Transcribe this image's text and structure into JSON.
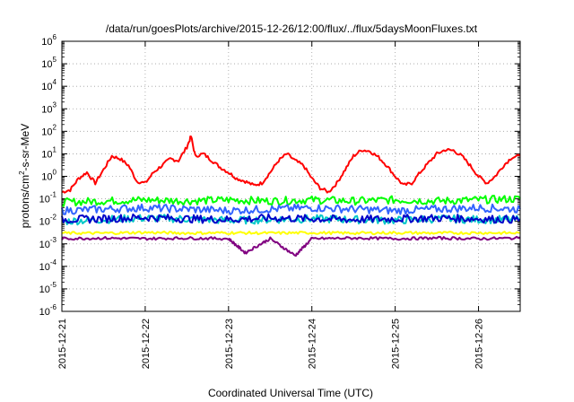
{
  "chart_data": {
    "type": "line",
    "title": "/data/run/goesPlots/archive/2015-12-26/12:00/flux/../flux/5daysMoonFluxes.txt",
    "xlabel": "Coordinated Universal Time (UTC)",
    "ylabel_parts": {
      "main": "protons/cm",
      "sup": "2",
      "rest": "-s-sr-MeV"
    },
    "yscale": "log",
    "ylim": [
      1e-06,
      1000000.0
    ],
    "xlim": [
      "2015-12-21",
      "2015-12-26T12:00"
    ],
    "x_tick_labels": [
      "2015-12-21",
      "2015-12-22",
      "2015-12-23",
      "2015-12-24",
      "2015-12-25",
      "2015-12-26"
    ],
    "y_tick_labels": [
      {
        "base": "10",
        "exp": "-6"
      },
      {
        "base": "10",
        "exp": "-5"
      },
      {
        "base": "10",
        "exp": "-4"
      },
      {
        "base": "10",
        "exp": "-3"
      },
      {
        "base": "10",
        "exp": "-2"
      },
      {
        "base": "10",
        "exp": "-1"
      },
      {
        "base": "10",
        "exp": "0"
      },
      {
        "base": "10",
        "exp": "1"
      },
      {
        "base": "10",
        "exp": "2"
      },
      {
        "base": "10",
        "exp": "3"
      },
      {
        "base": "10",
        "exp": "4"
      },
      {
        "base": "10",
        "exp": "5"
      },
      {
        "base": "10",
        "exp": "6"
      }
    ],
    "grid": true,
    "series": [
      {
        "color": "#ff0000",
        "x": [
          0,
          0.1,
          0.2,
          0.3,
          0.4,
          0.5,
          0.6,
          0.7,
          0.8,
          0.9,
          1.0,
          1.1,
          1.2,
          1.3,
          1.4,
          1.5,
          1.55,
          1.6,
          1.7,
          1.8,
          1.9,
          2.0,
          2.1,
          2.2,
          2.3,
          2.4,
          2.5,
          2.6,
          2.7,
          2.8,
          2.9,
          3.0,
          3.1,
          3.2,
          3.3,
          3.4,
          3.5,
          3.6,
          3.7,
          3.8,
          3.9,
          4.0,
          4.1,
          4.2,
          4.3,
          4.4,
          4.5,
          4.6,
          4.7,
          4.8,
          4.9,
          5.0,
          5.1,
          5.2,
          5.3,
          5.4,
          5.5
        ],
        "y": [
          0.2,
          0.25,
          0.8,
          1.5,
          0.5,
          2.0,
          8,
          6,
          3,
          0.6,
          0.5,
          1.5,
          3,
          6,
          5,
          20,
          60,
          8,
          10,
          5,
          2.5,
          1.5,
          0.8,
          0.6,
          0.4,
          0.5,
          1.5,
          5,
          10,
          5,
          3,
          0.8,
          0.3,
          0.2,
          0.5,
          2,
          8,
          15,
          13,
          7,
          3,
          1.0,
          0.4,
          0.5,
          1.5,
          4,
          10,
          15,
          14,
          8,
          3,
          1.0,
          0.5,
          1.0,
          3,
          7,
          8
        ]
      },
      {
        "color": "#00ff00",
        "x": [
          0,
          0.5,
          1.0,
          1.5,
          2.0,
          2.5,
          3.0,
          3.5,
          4.0,
          4.5,
          5.0,
          5.5
        ],
        "y": [
          0.07,
          0.08,
          0.09,
          0.08,
          0.09,
          0.08,
          0.09,
          0.08,
          0.09,
          0.08,
          0.09,
          0.1
        ]
      },
      {
        "color": "#00c8c8",
        "x": [
          0,
          0.5,
          1.0,
          1.5,
          2.0,
          2.5,
          3.0,
          3.5,
          4.0,
          4.5,
          5.0,
          5.5
        ],
        "y": [
          0.01,
          0.012,
          0.014,
          0.013,
          0.011,
          0.012,
          0.013,
          0.012,
          0.011,
          0.013,
          0.012,
          0.012
        ]
      },
      {
        "color": "#3264ff",
        "x": [
          0,
          0.5,
          1.0,
          1.5,
          2.0,
          2.5,
          3.0,
          3.5,
          4.0,
          4.5,
          5.0,
          5.5
        ],
        "y": [
          0.03,
          0.035,
          0.04,
          0.035,
          0.03,
          0.035,
          0.04,
          0.035,
          0.03,
          0.035,
          0.04,
          0.035
        ]
      },
      {
        "color": "#0000c8",
        "x": [
          0,
          0.5,
          1.0,
          1.5,
          2.0,
          2.5,
          3.0,
          3.5,
          4.0,
          4.5,
          5.0,
          5.5
        ],
        "y": [
          0.012,
          0.013,
          0.015,
          0.013,
          0.012,
          0.014,
          0.013,
          0.012,
          0.013,
          0.014,
          0.013,
          0.012
        ]
      },
      {
        "color": "#ffff00",
        "x": [
          0,
          0.5,
          1.0,
          1.5,
          2.0,
          2.5,
          3.0,
          3.5,
          4.0,
          4.5,
          5.0,
          5.5
        ],
        "y": [
          0.003,
          0.003,
          0.0032,
          0.003,
          0.0031,
          0.003,
          0.0031,
          0.003,
          0.0031,
          0.003,
          0.0031,
          0.003
        ]
      },
      {
        "color": "#800080",
        "x": [
          0,
          0.5,
          1.0,
          1.5,
          2.0,
          2.2,
          2.5,
          2.8,
          3.0,
          3.5,
          4.0,
          4.5,
          5.0,
          5.5
        ],
        "y": [
          0.0017,
          0.0018,
          0.0017,
          0.0018,
          0.0017,
          0.0004,
          0.0017,
          0.0003,
          0.0017,
          0.0018,
          0.0017,
          0.0018,
          0.0017,
          0.0018
        ]
      }
    ]
  }
}
